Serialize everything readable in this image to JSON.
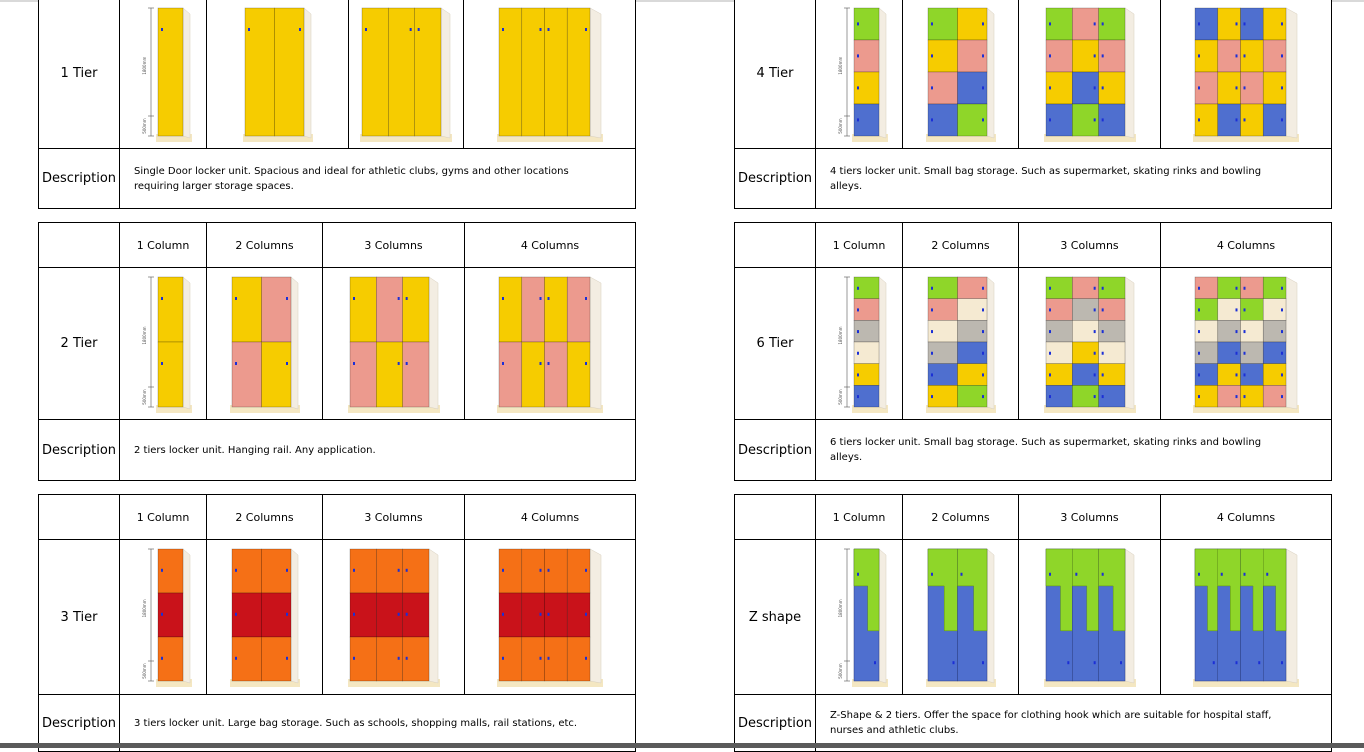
{
  "colors": {
    "yellow": "#f6cc00",
    "pink": "#ec9a8e",
    "orange": "#f57016",
    "red": "#c9121a",
    "green": "#8fd629",
    "blue": "#4f6fcf",
    "grey": "#bcb8b0",
    "cream": "#f5ead2",
    "side": "#f3ede2",
    "knob": "#1b2fd6",
    "floor": "#f4e7c2"
  },
  "sections": [
    {
      "id": "1tier",
      "label": "1 Tier",
      "columns": [],
      "description": "Single Door locker unit. Spacious and ideal for athletic clubs, gyms and other locations requiring larger storage spaces.",
      "images": [
        {
          "name": "locker-1tier-1col-image",
          "cols": 1,
          "rows": [
            "yellow"
          ],
          "dims": [
            "1800mm",
            "500mm"
          ]
        },
        {
          "name": "locker-1tier-2col-image",
          "cols": 2,
          "rows": [
            "yellow"
          ]
        },
        {
          "name": "locker-1tier-3col-image",
          "cols": 3,
          "rows": [
            "yellow"
          ]
        },
        {
          "name": "locker-1tier-4col-image",
          "cols": 4,
          "rows": [
            "yellow"
          ]
        }
      ]
    },
    {
      "id": "4tier",
      "label": "4 Tier",
      "columns": [],
      "description": "4 tiers locker unit. Small bag storage. Such as supermarket, skating rinks and bowling alleys.",
      "images": [
        {
          "name": "locker-4tier-1col-image",
          "cols": 1,
          "rows": [
            "green",
            "pink",
            "yellow",
            "blue"
          ],
          "dims": [
            "1800mm",
            "500mm"
          ]
        },
        {
          "name": "locker-4tier-2col-image",
          "cols": 2,
          "rows": [
            "green",
            "yellow",
            "pink",
            "blue"
          ],
          "pattern": "checker"
        },
        {
          "name": "locker-4tier-3col-image",
          "cols": 3,
          "rows": [
            "green",
            "pink",
            "yellow",
            "blue"
          ],
          "pattern": "checker"
        },
        {
          "name": "locker-4tier-4col-image",
          "cols": 4,
          "rows": [
            "blue",
            "yellow",
            "pink",
            "yellow"
          ],
          "pattern": "checker"
        }
      ]
    },
    {
      "id": "2tier",
      "label": "2 Tier",
      "columns": [
        "1 Column",
        "2 Columns",
        "3 Columns",
        "4 Columns"
      ],
      "description": "2 tiers locker unit. Hanging rail. Any application.",
      "images": [
        {
          "name": "locker-2tier-1col-image",
          "cols": 1,
          "rows": [
            "yellow",
            "yellow"
          ],
          "dims": [
            "1800mm",
            "500mm"
          ]
        },
        {
          "name": "locker-2tier-2col-image",
          "cols": 2,
          "rows": [
            "yellow",
            "pink"
          ],
          "pattern": "checker"
        },
        {
          "name": "locker-2tier-3col-image",
          "cols": 3,
          "rows": [
            "yellow",
            "pink"
          ],
          "pattern": "checker"
        },
        {
          "name": "locker-2tier-4col-image",
          "cols": 4,
          "rows": [
            "yellow",
            "pink"
          ],
          "pattern": "checker"
        }
      ]
    },
    {
      "id": "6tier",
      "label": "6 Tier",
      "columns": [
        "1 Column",
        "2 Columns",
        "3 Columns",
        "4 Columns"
      ],
      "description": "6 tiers locker unit. Small bag storage. Such as supermarket, skating rinks and bowling alleys.",
      "images": [
        {
          "name": "locker-6tier-1col-image",
          "cols": 1,
          "rows": [
            "green",
            "pink",
            "grey",
            "cream",
            "yellow",
            "blue"
          ],
          "dims": [
            "1800mm",
            "500mm"
          ]
        },
        {
          "name": "locker-6tier-2col-image",
          "cols": 2,
          "rows": [
            "green",
            "pink",
            "cream",
            "grey",
            "blue",
            "yellow"
          ],
          "pattern": "checker"
        },
        {
          "name": "locker-6tier-3col-image",
          "cols": 3,
          "rows": [
            "green",
            "pink",
            "grey",
            "cream",
            "yellow",
            "blue"
          ],
          "pattern": "checker"
        },
        {
          "name": "locker-6tier-4col-image",
          "cols": 4,
          "rows": [
            "pink",
            "green",
            "cream",
            "grey",
            "blue",
            "yellow"
          ],
          "pattern": "checker"
        }
      ]
    },
    {
      "id": "3tier",
      "label": "3 Tier",
      "columns": [
        "1 Column",
        "2 Columns",
        "3 Columns",
        "4 Columns"
      ],
      "description": "3 tiers locker unit. Large bag storage. Such as schools, shopping malls, rail stations, etc.",
      "images": [
        {
          "name": "locker-3tier-1col-image",
          "cols": 1,
          "rows": [
            "orange",
            "red",
            "orange"
          ],
          "dims": [
            "1800mm",
            "500mm"
          ]
        },
        {
          "name": "locker-3tier-2col-image",
          "cols": 2,
          "rows": [
            "orange",
            "red",
            "orange"
          ]
        },
        {
          "name": "locker-3tier-3col-image",
          "cols": 3,
          "rows": [
            "orange",
            "red",
            "orange"
          ]
        },
        {
          "name": "locker-3tier-4col-image",
          "cols": 4,
          "rows": [
            "orange",
            "red",
            "orange"
          ]
        }
      ]
    },
    {
      "id": "zshape",
      "label": "Z shape",
      "columns": [
        "1 Column",
        "2 Columns",
        "3 Columns",
        "4 Columns"
      ],
      "description": "Z-Shape & 2 tiers. Offer the space for clothing hook which are suitable for hospital staff, nurses and athletic clubs.",
      "images": [
        {
          "name": "locker-zshape-1col-image",
          "cols": 1,
          "z": true,
          "dims": [
            "1800mm",
            "500mm"
          ]
        },
        {
          "name": "locker-zshape-2col-image",
          "cols": 2,
          "z": true
        },
        {
          "name": "locker-zshape-3col-image",
          "cols": 3,
          "z": true
        },
        {
          "name": "locker-zshape-4col-image",
          "cols": 4,
          "z": true
        }
      ]
    }
  ]
}
